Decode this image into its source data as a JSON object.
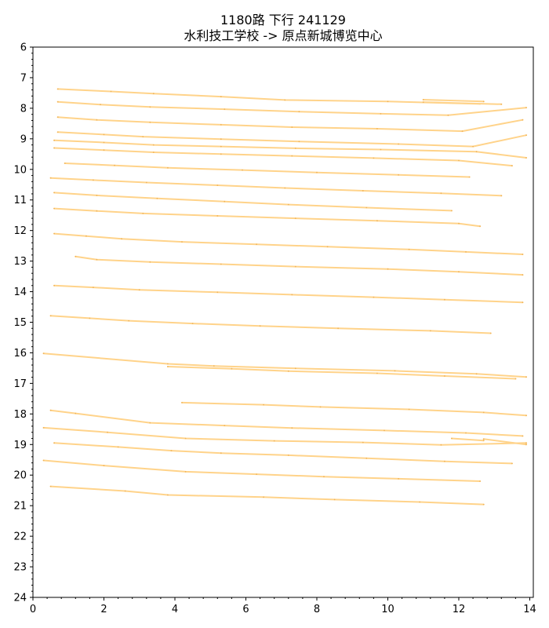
{
  "chart_data": {
    "type": "line",
    "title": "1180路  下行  241129",
    "subtitle": "水利技工学校 -> 原点新城博览中心",
    "xlabel": "",
    "ylabel": "",
    "xlim": [
      0,
      14.1
    ],
    "ylim": [
      24,
      6
    ],
    "y_inverted": true,
    "grid": false,
    "line_color": "#ffd38a",
    "x_ticks": [
      0,
      2,
      4,
      6,
      8,
      10,
      12,
      14
    ],
    "y_ticks": [
      6,
      7,
      8,
      9,
      10,
      11,
      12,
      13,
      14,
      15,
      16,
      17,
      18,
      19,
      20,
      21,
      22,
      23,
      24
    ],
    "series": [
      {
        "x": [
          0.7,
          2.2,
          3.4,
          5.3,
          7.1,
          10.0,
          12.6
        ],
        "y": [
          7.37,
          7.45,
          7.52,
          7.62,
          7.73,
          7.78,
          7.86
        ]
      },
      {
        "x": [
          11.0,
          12.7
        ],
        "y": [
          7.72,
          7.78
        ]
      },
      {
        "x": [
          11.0,
          13.2
        ],
        "y": [
          7.8,
          7.87
        ]
      },
      {
        "x": [
          0.7,
          1.9,
          3.3,
          5.4,
          7.5,
          9.8,
          11.7,
          13.9
        ],
        "y": [
          7.79,
          7.88,
          7.96,
          8.03,
          8.11,
          8.18,
          8.23,
          7.98
        ]
      },
      {
        "x": [
          0.7,
          1.8,
          3.3,
          5.3,
          7.3,
          9.7,
          12.1,
          13.8
        ],
        "y": [
          8.29,
          8.38,
          8.46,
          8.54,
          8.62,
          8.67,
          8.75,
          8.38
        ]
      },
      {
        "x": [
          0.7,
          2.0,
          3.1,
          5.3,
          7.5,
          10.3,
          12.4,
          13.9
        ],
        "y": [
          8.78,
          8.86,
          8.93,
          9.01,
          9.09,
          9.17,
          9.25,
          8.88
        ]
      },
      {
        "x": [
          0.6,
          2.0,
          3.4,
          5.3,
          7.4,
          9.8,
          12.5,
          13.9
        ],
        "y": [
          9.05,
          9.12,
          9.2,
          9.25,
          9.31,
          9.35,
          9.42,
          9.62
        ]
      },
      {
        "x": [
          0.6,
          2.0,
          3.4,
          5.3,
          7.3,
          9.6,
          12.0,
          13.5
        ],
        "y": [
          9.3,
          9.37,
          9.44,
          9.5,
          9.56,
          9.63,
          9.71,
          9.88
        ]
      },
      {
        "x": [
          0.9,
          2.3,
          3.8,
          5.9,
          8.0,
          10.3,
          12.3
        ],
        "y": [
          9.8,
          9.87,
          9.95,
          10.02,
          10.1,
          10.18,
          10.25
        ]
      },
      {
        "x": [
          0.5,
          1.7,
          3.2,
          5.2,
          7.1,
          9.3,
          11.5,
          13.2
        ],
        "y": [
          10.28,
          10.35,
          10.43,
          10.52,
          10.61,
          10.7,
          10.78,
          10.86
        ]
      },
      {
        "x": [
          0.6,
          1.8,
          3.5,
          5.4,
          7.2,
          9.4,
          11.8
        ],
        "y": [
          10.76,
          10.85,
          10.95,
          11.05,
          11.15,
          11.25,
          11.35
        ]
      },
      {
        "x": [
          0.6,
          1.8,
          3.1,
          5.2,
          7.4,
          9.7,
          12.0,
          12.6
        ],
        "y": [
          11.28,
          11.36,
          11.44,
          11.52,
          11.6,
          11.68,
          11.77,
          11.86
        ]
      },
      {
        "x": [
          0.6,
          1.5,
          2.5,
          4.2,
          6.3,
          8.3,
          10.6,
          12.2,
          13.8
        ],
        "y": [
          12.1,
          12.18,
          12.27,
          12.37,
          12.45,
          12.53,
          12.62,
          12.7,
          12.78
        ]
      },
      {
        "x": [
          1.2,
          1.8,
          3.3,
          5.3,
          7.4,
          10.0,
          12.0,
          13.8
        ],
        "y": [
          12.85,
          12.95,
          13.03,
          13.1,
          13.18,
          13.26,
          13.35,
          13.45
        ]
      },
      {
        "x": [
          0.6,
          1.7,
          3.0,
          5.2,
          7.3,
          9.6,
          11.6,
          13.8
        ],
        "y": [
          13.8,
          13.86,
          13.94,
          14.02,
          14.1,
          14.18,
          14.26,
          14.35
        ]
      },
      {
        "x": [
          0.5,
          1.6,
          2.7,
          4.5,
          6.4,
          8.6,
          11.2,
          12.9
        ],
        "y": [
          14.79,
          14.87,
          14.95,
          15.04,
          15.12,
          15.2,
          15.28,
          15.36
        ]
      },
      {
        "x": [
          0.3,
          3.8,
          5.1,
          7.4,
          10.2,
          12.5,
          13.9
        ],
        "y": [
          16.02,
          16.36,
          16.43,
          16.51,
          16.59,
          16.69,
          16.79
        ]
      },
      {
        "x": [
          3.8,
          5.6,
          7.2,
          9.7,
          11.6,
          13.6
        ],
        "y": [
          16.45,
          16.52,
          16.6,
          16.67,
          16.76,
          16.85
        ]
      },
      {
        "x": [
          4.2,
          6.5,
          8.1,
          10.6,
          12.7,
          13.9
        ],
        "y": [
          17.63,
          17.7,
          17.77,
          17.85,
          17.95,
          18.05
        ]
      },
      {
        "x": [
          0.5,
          1.2,
          3.3,
          5.4,
          7.3,
          9.9,
          12.2,
          13.8
        ],
        "y": [
          17.88,
          17.98,
          18.29,
          18.38,
          18.46,
          18.54,
          18.62,
          18.72
        ]
      },
      {
        "x": [
          0.3,
          2.1,
          4.3,
          6.8,
          9.3,
          11.5,
          13.9
        ],
        "y": [
          18.45,
          18.6,
          18.8,
          18.88,
          18.93,
          19.01,
          18.95
        ]
      },
      {
        "x": [
          11.8,
          12.7
        ],
        "y": [
          18.8,
          18.87
        ]
      },
      {
        "x": [
          0.6,
          2.4,
          3.9,
          5.3,
          7.2,
          9.4,
          11.6,
          13.5
        ],
        "y": [
          18.95,
          19.08,
          19.2,
          19.28,
          19.35,
          19.45,
          19.55,
          19.62
        ]
      },
      {
        "x": [
          12.7,
          13.9
        ],
        "y": [
          18.82,
          19.0
        ]
      },
      {
        "x": [
          0.3,
          2.0,
          4.3,
          6.3,
          8.2,
          10.3,
          12.6
        ],
        "y": [
          19.52,
          19.69,
          19.89,
          19.97,
          20.05,
          20.12,
          20.2
        ]
      },
      {
        "x": [
          0.5,
          2.6,
          3.8,
          6.5,
          8.5,
          10.9,
          12.7
        ],
        "y": [
          20.37,
          20.52,
          20.65,
          20.72,
          20.8,
          20.88,
          20.96
        ]
      }
    ]
  }
}
